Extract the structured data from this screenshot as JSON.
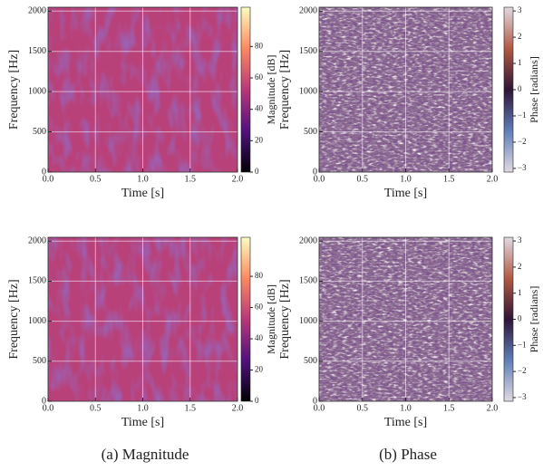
{
  "chart_data": [
    {
      "type": "heatmap",
      "xlabel": "Time [s]",
      "ylabel": "Frequency [Hz]",
      "xlim": [
        0,
        2
      ],
      "ylim": [
        0,
        2048
      ],
      "xticks": [
        {
          "value": 0,
          "label": "0.0"
        },
        {
          "value": 0.5,
          "label": "0.5"
        },
        {
          "value": 1,
          "label": "1.0"
        },
        {
          "value": 1.5,
          "label": "1.5"
        },
        {
          "value": 2,
          "label": "2.0"
        }
      ],
      "yticks": [
        0,
        500,
        1000,
        1500,
        2000
      ],
      "grid": true,
      "colormap": "magma",
      "colorbar": {
        "label": "Magnitude [dB]",
        "lim": [
          0,
          105
        ],
        "ticks": [
          0,
          20,
          40,
          60,
          80
        ]
      }
    },
    {
      "type": "heatmap",
      "xlabel": "Time [s]",
      "ylabel": "Frequency [Hz]",
      "xlim": [
        0,
        2
      ],
      "ylim": [
        0,
        2048
      ],
      "xticks": [
        {
          "value": 0,
          "label": "0.0"
        },
        {
          "value": 0.5,
          "label": "0.5"
        },
        {
          "value": 1,
          "label": "1.0"
        },
        {
          "value": 1.5,
          "label": "1.5"
        },
        {
          "value": 2,
          "label": "2.0"
        }
      ],
      "yticks": [
        0,
        500,
        1000,
        1500,
        2000
      ],
      "grid": true,
      "colormap": "twilight",
      "colorbar": {
        "label": "Phase [radians]",
        "lim": [
          -3.1416,
          3.1416
        ],
        "ticks": [
          {
            "value": -3,
            "label": "−3"
          },
          {
            "value": -2,
            "label": "−2"
          },
          {
            "value": -1,
            "label": "−1"
          },
          0,
          1,
          2,
          3
        ]
      }
    },
    {
      "type": "heatmap",
      "xlabel": "Time [s]",
      "ylabel": "Frequency [Hz]",
      "xlim": [
        0,
        2
      ],
      "ylim": [
        0,
        2048
      ],
      "xticks": [
        {
          "value": 0,
          "label": "0.0"
        },
        {
          "value": 0.5,
          "label": "0.5"
        },
        {
          "value": 1,
          "label": "1.0"
        },
        {
          "value": 1.5,
          "label": "1.5"
        },
        {
          "value": 2,
          "label": "2.0"
        }
      ],
      "yticks": [
        0,
        500,
        1000,
        1500,
        2000
      ],
      "grid": true,
      "colormap": "magma",
      "colorbar": {
        "label": "Magnitude [dB]",
        "lim": [
          0,
          105
        ],
        "ticks": [
          0,
          20,
          40,
          60,
          80
        ]
      }
    },
    {
      "type": "heatmap",
      "xlabel": "Time [s]",
      "ylabel": "Frequency [Hz]",
      "xlim": [
        0,
        2
      ],
      "ylim": [
        0,
        2048
      ],
      "xticks": [
        {
          "value": 0,
          "label": "0.0"
        },
        {
          "value": 0.5,
          "label": "0.5"
        },
        {
          "value": 1,
          "label": "1.0"
        },
        {
          "value": 1.5,
          "label": "1.5"
        },
        {
          "value": 2,
          "label": "2.0"
        }
      ],
      "yticks": [
        0,
        500,
        1000,
        1500,
        2000
      ],
      "grid": true,
      "colormap": "twilight",
      "colorbar": {
        "label": "Phase [radians]",
        "lim": [
          -3.1416,
          3.1416
        ],
        "ticks": [
          {
            "value": -3,
            "label": "−3"
          },
          {
            "value": -2,
            "label": "−2"
          },
          {
            "value": -1,
            "label": "−1"
          },
          0,
          1,
          2,
          3
        ]
      }
    }
  ],
  "captions": [
    "(a) Magnitude",
    "(b) Phase"
  ]
}
